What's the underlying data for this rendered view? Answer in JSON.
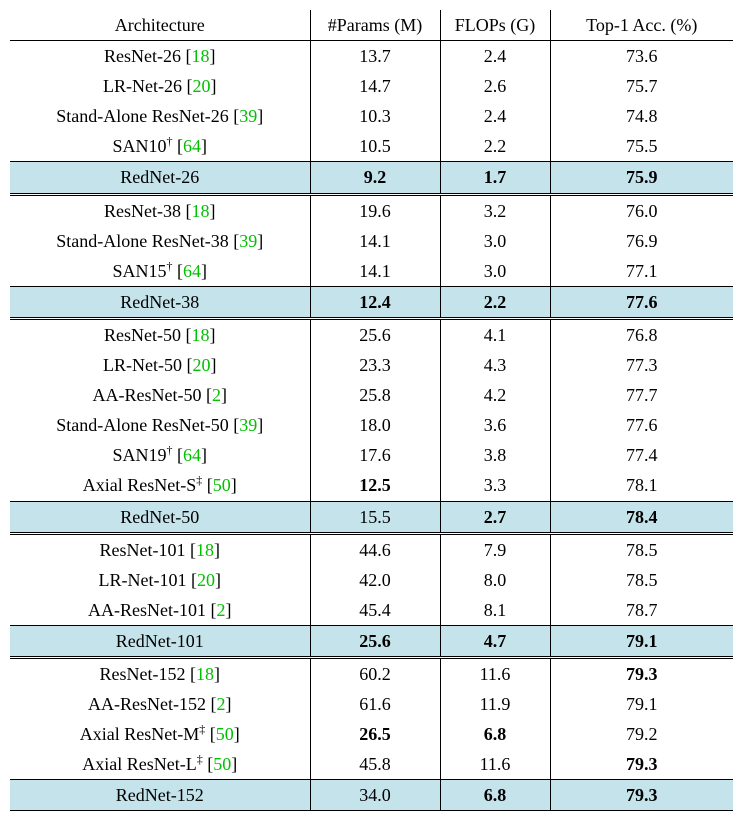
{
  "header": {
    "arch": "Architecture",
    "params": "#Params (M)",
    "flops": "FLOPs (G)",
    "acc": "Top-1 Acc. (%)"
  },
  "cite_color": "#00c000",
  "highlight_color": "#c4e3eb",
  "groups": [
    {
      "rows": [
        {
          "name": "ResNet-26",
          "cite": "18",
          "sup": "",
          "params": "13.7",
          "flops": "2.4",
          "acc": "73.6"
        },
        {
          "name": "LR-Net-26",
          "cite": "20",
          "sup": "",
          "params": "14.7",
          "flops": "2.6",
          "acc": "75.7"
        },
        {
          "name": "Stand-Alone ResNet-26",
          "cite": "39",
          "sup": "",
          "params": "10.3",
          "flops": "2.4",
          "acc": "74.8"
        },
        {
          "name": "SAN10",
          "cite": "64",
          "sup": "†",
          "params": "10.5",
          "flops": "2.2",
          "acc": "75.5"
        }
      ],
      "highlight": {
        "name": "RedNet-26",
        "params": "9.2",
        "flops": "1.7",
        "acc": "75.9",
        "bold": {
          "params": true,
          "flops": true,
          "acc": true
        }
      }
    },
    {
      "rows": [
        {
          "name": "ResNet-38",
          "cite": "18",
          "sup": "",
          "params": "19.6",
          "flops": "3.2",
          "acc": "76.0"
        },
        {
          "name": "Stand-Alone ResNet-38",
          "cite": "39",
          "sup": "",
          "params": "14.1",
          "flops": "3.0",
          "acc": "76.9"
        },
        {
          "name": "SAN15",
          "cite": "64",
          "sup": "†",
          "params": "14.1",
          "flops": "3.0",
          "acc": "77.1"
        }
      ],
      "highlight": {
        "name": "RedNet-38",
        "params": "12.4",
        "flops": "2.2",
        "acc": "77.6",
        "bold": {
          "params": true,
          "flops": true,
          "acc": true
        }
      }
    },
    {
      "rows": [
        {
          "name": "ResNet-50",
          "cite": "18",
          "sup": "",
          "params": "25.6",
          "flops": "4.1",
          "acc": "76.8"
        },
        {
          "name": "LR-Net-50",
          "cite": "20",
          "sup": "",
          "params": "23.3",
          "flops": "4.3",
          "acc": "77.3"
        },
        {
          "name": "AA-ResNet-50",
          "cite": "2",
          "sup": "",
          "params": "25.8",
          "flops": "4.2",
          "acc": "77.7"
        },
        {
          "name": "Stand-Alone ResNet-50",
          "cite": "39",
          "sup": "",
          "params": "18.0",
          "flops": "3.6",
          "acc": "77.6"
        },
        {
          "name": "SAN19",
          "cite": "64",
          "sup": "†",
          "params": "17.6",
          "flops": "3.8",
          "acc": "77.4"
        },
        {
          "name": "Axial ResNet-S",
          "cite": "50",
          "sup": "‡",
          "params": "12.5",
          "flops": "3.3",
          "acc": "78.1",
          "bold": {
            "params": true
          }
        }
      ],
      "highlight": {
        "name": "RedNet-50",
        "params": "15.5",
        "flops": "2.7",
        "acc": "78.4",
        "bold": {
          "flops": true,
          "acc": true
        }
      }
    },
    {
      "rows": [
        {
          "name": "ResNet-101",
          "cite": "18",
          "sup": "",
          "params": "44.6",
          "flops": "7.9",
          "acc": "78.5"
        },
        {
          "name": "LR-Net-101",
          "cite": "20",
          "sup": "",
          "params": "42.0",
          "flops": "8.0",
          "acc": "78.5"
        },
        {
          "name": "AA-ResNet-101",
          "cite": "2",
          "sup": "",
          "params": "45.4",
          "flops": "8.1",
          "acc": "78.7"
        }
      ],
      "highlight": {
        "name": "RedNet-101",
        "params": "25.6",
        "flops": "4.7",
        "acc": "79.1",
        "bold": {
          "params": true,
          "flops": true,
          "acc": true
        }
      }
    },
    {
      "rows": [
        {
          "name": "ResNet-152",
          "cite": "18",
          "sup": "",
          "params": "60.2",
          "flops": "11.6",
          "acc": "79.3",
          "bold": {
            "acc": true
          }
        },
        {
          "name": "AA-ResNet-152",
          "cite": "2",
          "sup": "",
          "params": "61.6",
          "flops": "11.9",
          "acc": "79.1"
        },
        {
          "name": "Axial ResNet-M",
          "cite": "50",
          "sup": "‡",
          "params": "26.5",
          "flops": "6.8",
          "acc": "79.2",
          "bold": {
            "params": true,
            "flops": true
          }
        },
        {
          "name": "Axial ResNet-L",
          "cite": "50",
          "sup": "‡",
          "params": "45.8",
          "flops": "11.6",
          "acc": "79.3",
          "bold": {
            "acc": true
          }
        }
      ],
      "highlight": {
        "name": "RedNet-152",
        "params": "34.0",
        "flops": "6.8",
        "acc": "79.3",
        "bold": {
          "flops": true,
          "acc": true
        }
      }
    }
  ]
}
